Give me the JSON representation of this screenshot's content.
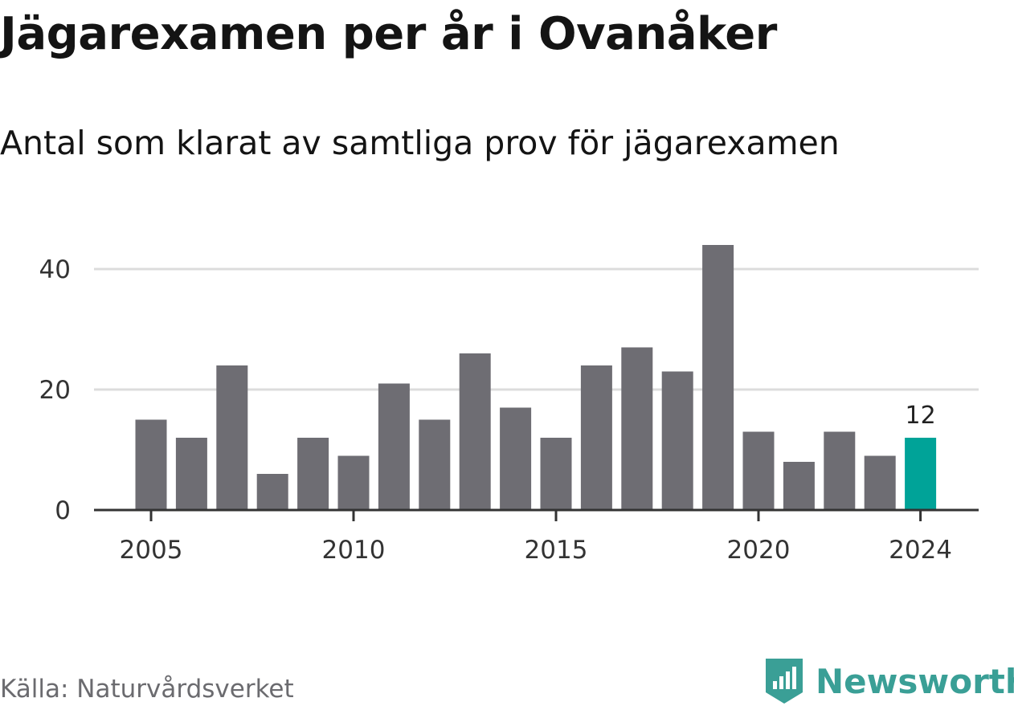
{
  "title": "Jägarexamen per år i Ovanåker",
  "subtitle": "Antal som klarat av samtliga prov för jägarexamen",
  "source": "Källa: Naturvårdsverket",
  "brand": {
    "name": "Newsworthy",
    "icon": "newsworthy-logo-icon",
    "color": "#3a9f96"
  },
  "colors": {
    "bar": "#6e6d73",
    "highlight": "#00a398",
    "grid": "#dcdcdc",
    "axis": "#333333"
  },
  "chart_data": {
    "type": "bar",
    "title": "Jägarexamen per år i Ovanåker",
    "subtitle": "Antal som klarat av samtliga prov för jägarexamen",
    "xlabel": "",
    "ylabel": "",
    "categories": [
      2005,
      2006,
      2007,
      2008,
      2009,
      2010,
      2011,
      2012,
      2013,
      2014,
      2015,
      2016,
      2017,
      2018,
      2019,
      2020,
      2021,
      2022,
      2023,
      2024
    ],
    "values": [
      15,
      12,
      24,
      6,
      12,
      9,
      21,
      15,
      26,
      17,
      12,
      24,
      27,
      23,
      44,
      13,
      8,
      13,
      9,
      12
    ],
    "ylim": [
      0,
      45
    ],
    "yticks": [
      0,
      20,
      40
    ],
    "xticks": [
      2005,
      2010,
      2015,
      2020,
      2024
    ],
    "grid": "horizontal",
    "legend": "none",
    "highlight": {
      "category": 2024,
      "label": "12"
    }
  }
}
